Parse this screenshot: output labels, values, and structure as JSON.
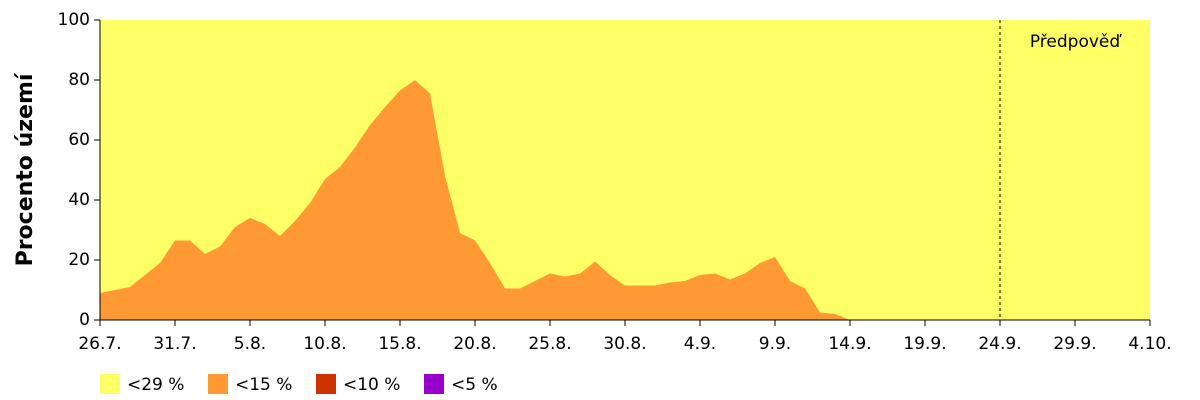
{
  "chart_data": {
    "type": "area",
    "y_label": "Procento území",
    "categories": [
      "26.7.",
      null,
      null,
      null,
      null,
      "31.7.",
      null,
      null,
      null,
      null,
      "5.8.",
      null,
      null,
      null,
      null,
      "10.8.",
      null,
      null,
      null,
      null,
      "15.8.",
      null,
      null,
      null,
      null,
      "20.8.",
      null,
      null,
      null,
      null,
      "25.8.",
      null,
      null,
      null,
      null,
      "30.8.",
      null,
      null,
      null,
      null,
      "4.9.",
      null,
      null,
      null,
      null,
      "9.9.",
      null,
      null,
      null,
      null,
      "14.9.",
      null,
      null,
      null,
      null,
      "19.9.",
      null,
      null,
      null,
      null,
      "24.9.",
      null,
      null,
      null,
      null,
      "29.9.",
      null,
      null,
      null,
      null,
      "4.10."
    ],
    "series": [
      {
        "name": "<29 %",
        "color": "#ffff66",
        "values": [
          100,
          100,
          100,
          100,
          100,
          100,
          100,
          100,
          100,
          100,
          100,
          100,
          100,
          100,
          100,
          100,
          100,
          100,
          100,
          100,
          100,
          100,
          100,
          100,
          100,
          100,
          100,
          100,
          100,
          100,
          100,
          100,
          100,
          100,
          100,
          100,
          100,
          100,
          100,
          100,
          100,
          100,
          100,
          100,
          100,
          100,
          100,
          100,
          100,
          100,
          100,
          100,
          100,
          100,
          100,
          100,
          100,
          100,
          100,
          100,
          100,
          100,
          100,
          100,
          100,
          100,
          100,
          100,
          100,
          100,
          100
        ]
      },
      {
        "name": "<15 %",
        "color": "#ff9933",
        "values": [
          9,
          10,
          11,
          15,
          19,
          26.5,
          26.5,
          22,
          24.5,
          31,
          34,
          32,
          28,
          33,
          39,
          47,
          51,
          57.5,
          65,
          71,
          76.5,
          80,
          75.5,
          48,
          29,
          26.5,
          19,
          10.5,
          10.5,
          13,
          15.5,
          14.5,
          15.5,
          19.5,
          15,
          11.5,
          11.5,
          11.5,
          12.5,
          13,
          15,
          15.5,
          13.5,
          15.5,
          19,
          21,
          13,
          10.5,
          2.5,
          2,
          0,
          0,
          0,
          0,
          0,
          0,
          0,
          0,
          0,
          0,
          0,
          0,
          0,
          0,
          0,
          0,
          0,
          0,
          0,
          0,
          0
        ]
      },
      {
        "name": "<10 %",
        "color": "#cc3300",
        "values": [
          0,
          0,
          0,
          0,
          0,
          0,
          0,
          0,
          0,
          0,
          0,
          0,
          0,
          0,
          0,
          0,
          0,
          0,
          0,
          0,
          0,
          0,
          0,
          0,
          0,
          0,
          0,
          0,
          0,
          0,
          0,
          0,
          0,
          0,
          0,
          0,
          0,
          0,
          0,
          0,
          0,
          0,
          0,
          0,
          0,
          0,
          0,
          0,
          0,
          0,
          0,
          0,
          0,
          0,
          0,
          0,
          0,
          0,
          0,
          0,
          0,
          0,
          0,
          0,
          0,
          0,
          0,
          0,
          0,
          0,
          0
        ]
      },
      {
        "name": "<5 %",
        "color": "#9900cc",
        "values": [
          0,
          0,
          0,
          0,
          0,
          0,
          0,
          0,
          0,
          0,
          0,
          0,
          0,
          0,
          0,
          0,
          0,
          0,
          0,
          0,
          0,
          0,
          0,
          0,
          0,
          0,
          0,
          0,
          0,
          0,
          0,
          0,
          0,
          0,
          0,
          0,
          0,
          0,
          0,
          0,
          0,
          0,
          0,
          0,
          0,
          0,
          0,
          0,
          0,
          0,
          0,
          0,
          0,
          0,
          0,
          0,
          0,
          0,
          0,
          0,
          0,
          0,
          0,
          0,
          0,
          0,
          0,
          0,
          0,
          0,
          0
        ]
      }
    ],
    "ylim": [
      0,
      100
    ],
    "yticks": [
      0,
      20,
      40,
      60,
      80,
      100
    ],
    "forecast_start": "24.9.",
    "forecast_label": "Předpověď"
  }
}
